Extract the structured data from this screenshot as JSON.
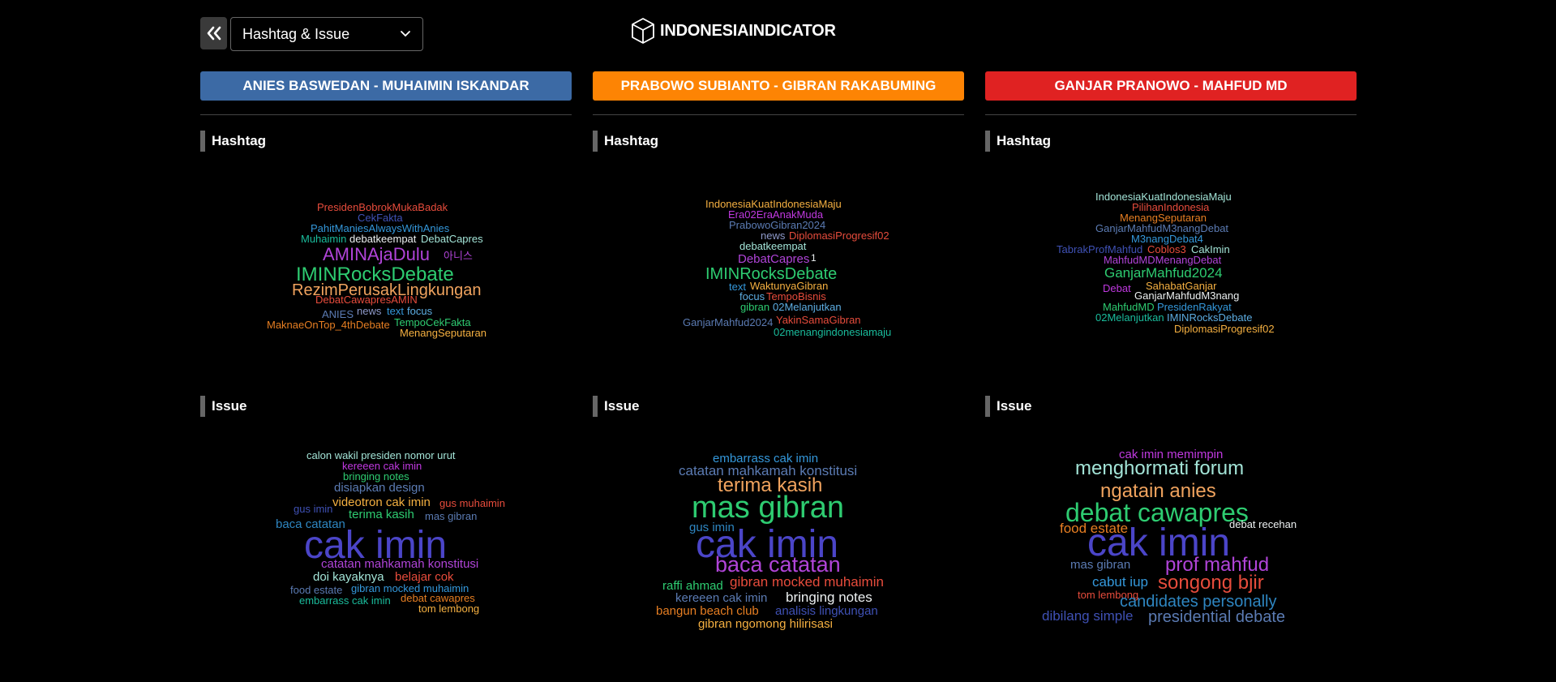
{
  "nav": {
    "back_icon": "double-chevron-left-icon",
    "select_value": "Hashtag & Issue",
    "select_icon": "chevron-down-icon"
  },
  "brand": {
    "name": "INDONESIAINDICATOR",
    "icon": "cube-icon"
  },
  "section_labels": {
    "hashtag": "Hashtag",
    "issue": "Issue"
  },
  "columns": [
    {
      "title": "ANIES BASWEDAN - MUHAIMIN ISKANDAR",
      "color": "#3c6aa5"
    },
    {
      "title": "PRABOWO SUBIANTO - GIBRAN RAKABUMING",
      "color": "#fd8404"
    },
    {
      "title": "GANJAR PRANOWO - MAHFUD MD",
      "color": "#e02222"
    }
  ],
  "clouds": {
    "c0_hashtag": [
      {
        "t": "PresidenBobrokMukaBadak",
        "c": "#e74c3c"
      },
      {
        "t": "CekFakta",
        "c": "#3f51b5"
      },
      {
        "t": "PahitManiesAlwaysWithAnies",
        "c": "#3498db"
      },
      {
        "t": "Muhaimin",
        "c": "#1abc9c"
      },
      {
        "t": "debatkeempat",
        "c": "#ecf0f1"
      },
      {
        "t": "DebatCapres",
        "c": "#a3e4d7"
      },
      {
        "t": "AMINAjaDulu",
        "c": "#b044d8"
      },
      {
        "t": "아니스",
        "c": "#b044d8"
      },
      {
        "t": "IMINRocksDebate",
        "c": "#2ecc71"
      },
      {
        "t": "RezimPerusakLingkungan",
        "c": "#f0a35e"
      },
      {
        "t": "DebatCawapresAMIN",
        "c": "#e74c3c"
      },
      {
        "t": "ANIES",
        "c": "#5b7bb3"
      },
      {
        "t": "news",
        "c": "#8e99c9"
      },
      {
        "t": "text",
        "c": "#3498db"
      },
      {
        "t": "focus",
        "c": "#5dade2"
      },
      {
        "t": "MaknaeOnTop_4thDebate",
        "c": "#e67e22"
      },
      {
        "t": "TempoCekFakta",
        "c": "#2ecc71"
      },
      {
        "t": "MenangSeputaran",
        "c": "#f5b041"
      }
    ],
    "c0_issue": [
      {
        "t": "calon wakil presiden nomor urut",
        "c": "#a3e4d7"
      },
      {
        "t": "kereeen cak imin",
        "c": "#c039e0"
      },
      {
        "t": "bringing notes",
        "c": "#2ecc71"
      },
      {
        "t": "disiapkan design",
        "c": "#5b7bb3"
      },
      {
        "t": "videotron cak imin",
        "c": "#f5b041"
      },
      {
        "t": "gus muhaimin",
        "c": "#e74c3c"
      },
      {
        "t": "gus imin",
        "c": "#3f51b5"
      },
      {
        "t": "terima kasih",
        "c": "#2ecc71"
      },
      {
        "t": "mas gibran",
        "c": "#5b7bb3"
      },
      {
        "t": "baca catatan",
        "c": "#2e86c1"
      },
      {
        "t": "cak imin",
        "c": "#4b45c8"
      },
      {
        "t": "catatan mahkamah konstitusi",
        "c": "#b044d8"
      },
      {
        "t": "doi kayaknya",
        "c": "#a3e4d7"
      },
      {
        "t": "belajar cok",
        "c": "#e74c3c"
      },
      {
        "t": "food estate",
        "c": "#5b7bb3"
      },
      {
        "t": "gibran mocked muhaimin",
        "c": "#3498db"
      },
      {
        "t": "embarrass cak imin",
        "c": "#1abc9c"
      },
      {
        "t": "debat cawapres",
        "c": "#e67e22"
      },
      {
        "t": "tom lembong",
        "c": "#f5b041"
      }
    ],
    "c1_hashtag": [
      {
        "t": "IndonesiaKuatIndonesiaMaju",
        "c": "#f5b041"
      },
      {
        "t": "Era02EraAnakMuda",
        "c": "#c039e0"
      },
      {
        "t": "PrabowoGibran2024",
        "c": "#5b7bb3"
      },
      {
        "t": "news",
        "c": "#8e99c9"
      },
      {
        "t": "DiplomasiProgresif02",
        "c": "#e74c3c"
      },
      {
        "t": "debatkeempat",
        "c": "#a3e4d7"
      },
      {
        "t": "DebatCapres",
        "c": "#b044d8"
      },
      {
        "t": "1",
        "c": "#ecf0f1"
      },
      {
        "t": "IMINRocksDebate",
        "c": "#2ecc71"
      },
      {
        "t": "text",
        "c": "#3498db"
      },
      {
        "t": "WaktunyaGibran",
        "c": "#f5b041"
      },
      {
        "t": "focus",
        "c": "#5dade2"
      },
      {
        "t": "TempoBisnis",
        "c": "#e74c3c"
      },
      {
        "t": "gibran",
        "c": "#2ecc71"
      },
      {
        "t": "02Melanjutkan",
        "c": "#5dade2"
      },
      {
        "t": "GanjarMahfud2024",
        "c": "#5b7bb3"
      },
      {
        "t": "YakinSamaGibran",
        "c": "#e74c3c"
      },
      {
        "t": "02menangindonesiamaju",
        "c": "#1abc9c"
      }
    ],
    "c1_issue": [
      {
        "t": "embarrass cak imin",
        "c": "#3498db"
      },
      {
        "t": "catatan mahkamah konstitusi",
        "c": "#5b7bb3"
      },
      {
        "t": "terima kasih",
        "c": "#f0a35e"
      },
      {
        "t": "mas gibran",
        "c": "#2ecc71"
      },
      {
        "t": "gus imin",
        "c": "#2e86c1"
      },
      {
        "t": "cak imin",
        "c": "#4b45c8"
      },
      {
        "t": "baca catatan",
        "c": "#b044d8"
      },
      {
        "t": "raffi ahmad",
        "c": "#2ecc71"
      },
      {
        "t": "gibran mocked muhaimin",
        "c": "#e74c3c"
      },
      {
        "t": "kereeen cak imin",
        "c": "#5b7bb3"
      },
      {
        "t": "bringing notes",
        "c": "#ecf0f1"
      },
      {
        "t": "bangun beach club",
        "c": "#e67e22"
      },
      {
        "t": "analisis lingkungan",
        "c": "#3f51b5"
      },
      {
        "t": "gibran ngomong hilirisasi",
        "c": "#f5b041"
      }
    ],
    "c2_hashtag": [
      {
        "t": "IndonesiaKuatIndonesiaMaju",
        "c": "#a3e4d7"
      },
      {
        "t": "PilihanIndonesia",
        "c": "#e74c3c"
      },
      {
        "t": "MenangSeputaran",
        "c": "#e67e22"
      },
      {
        "t": "GanjarMahfudM3nangDebat",
        "c": "#5b7bb3"
      },
      {
        "t": "M3nangDebat4",
        "c": "#3498db"
      },
      {
        "t": "TabrakProfMahfud",
        "c": "#3f51b5"
      },
      {
        "t": "Coblos3",
        "c": "#e74c3c"
      },
      {
        "t": "CakImin",
        "c": "#a3e4d7"
      },
      {
        "t": "MahfudMDMenangDebat",
        "c": "#b044d8"
      },
      {
        "t": "GanjarMahfud2024",
        "c": "#2ecc71"
      },
      {
        "t": "Debat",
        "c": "#c039e0"
      },
      {
        "t": "SahabatGanjar",
        "c": "#f5b041"
      },
      {
        "t": "GanjarMahfudM3nang",
        "c": "#ecf0f1"
      },
      {
        "t": "MahfudMD",
        "c": "#2ecc71"
      },
      {
        "t": "PresidenRakyat",
        "c": "#3498db"
      },
      {
        "t": "02Melanjutkan",
        "c": "#1abc9c"
      },
      {
        "t": "IMINRocksDebate",
        "c": "#5dade2"
      },
      {
        "t": "DiplomasiProgresif02",
        "c": "#f5b041"
      }
    ],
    "c2_issue": [
      {
        "t": "cak imin memimpin",
        "c": "#c039e0"
      },
      {
        "t": "menghormati forum",
        "c": "#a3e4d7"
      },
      {
        "t": "ngatain anies",
        "c": "#f0a35e"
      },
      {
        "t": "debat cawapres",
        "c": "#2ecc71"
      },
      {
        "t": "food estate",
        "c": "#e67e22"
      },
      {
        "t": "cak imin",
        "c": "#4b45c8"
      },
      {
        "t": "debat recehan",
        "c": "#ecf0f1"
      },
      {
        "t": "mas gibran",
        "c": "#5b7bb3"
      },
      {
        "t": "prof mahfud",
        "c": "#b044d8"
      },
      {
        "t": "cabut iup",
        "c": "#3498db"
      },
      {
        "t": "songong bjir",
        "c": "#e74c3c"
      },
      {
        "t": "tom lembong",
        "c": "#e74c3c"
      },
      {
        "t": "candidates personally",
        "c": "#2e86c1"
      },
      {
        "t": "dibilang simple",
        "c": "#3f51b5"
      },
      {
        "t": "presidential debate",
        "c": "#5b7bb3"
      }
    ]
  }
}
